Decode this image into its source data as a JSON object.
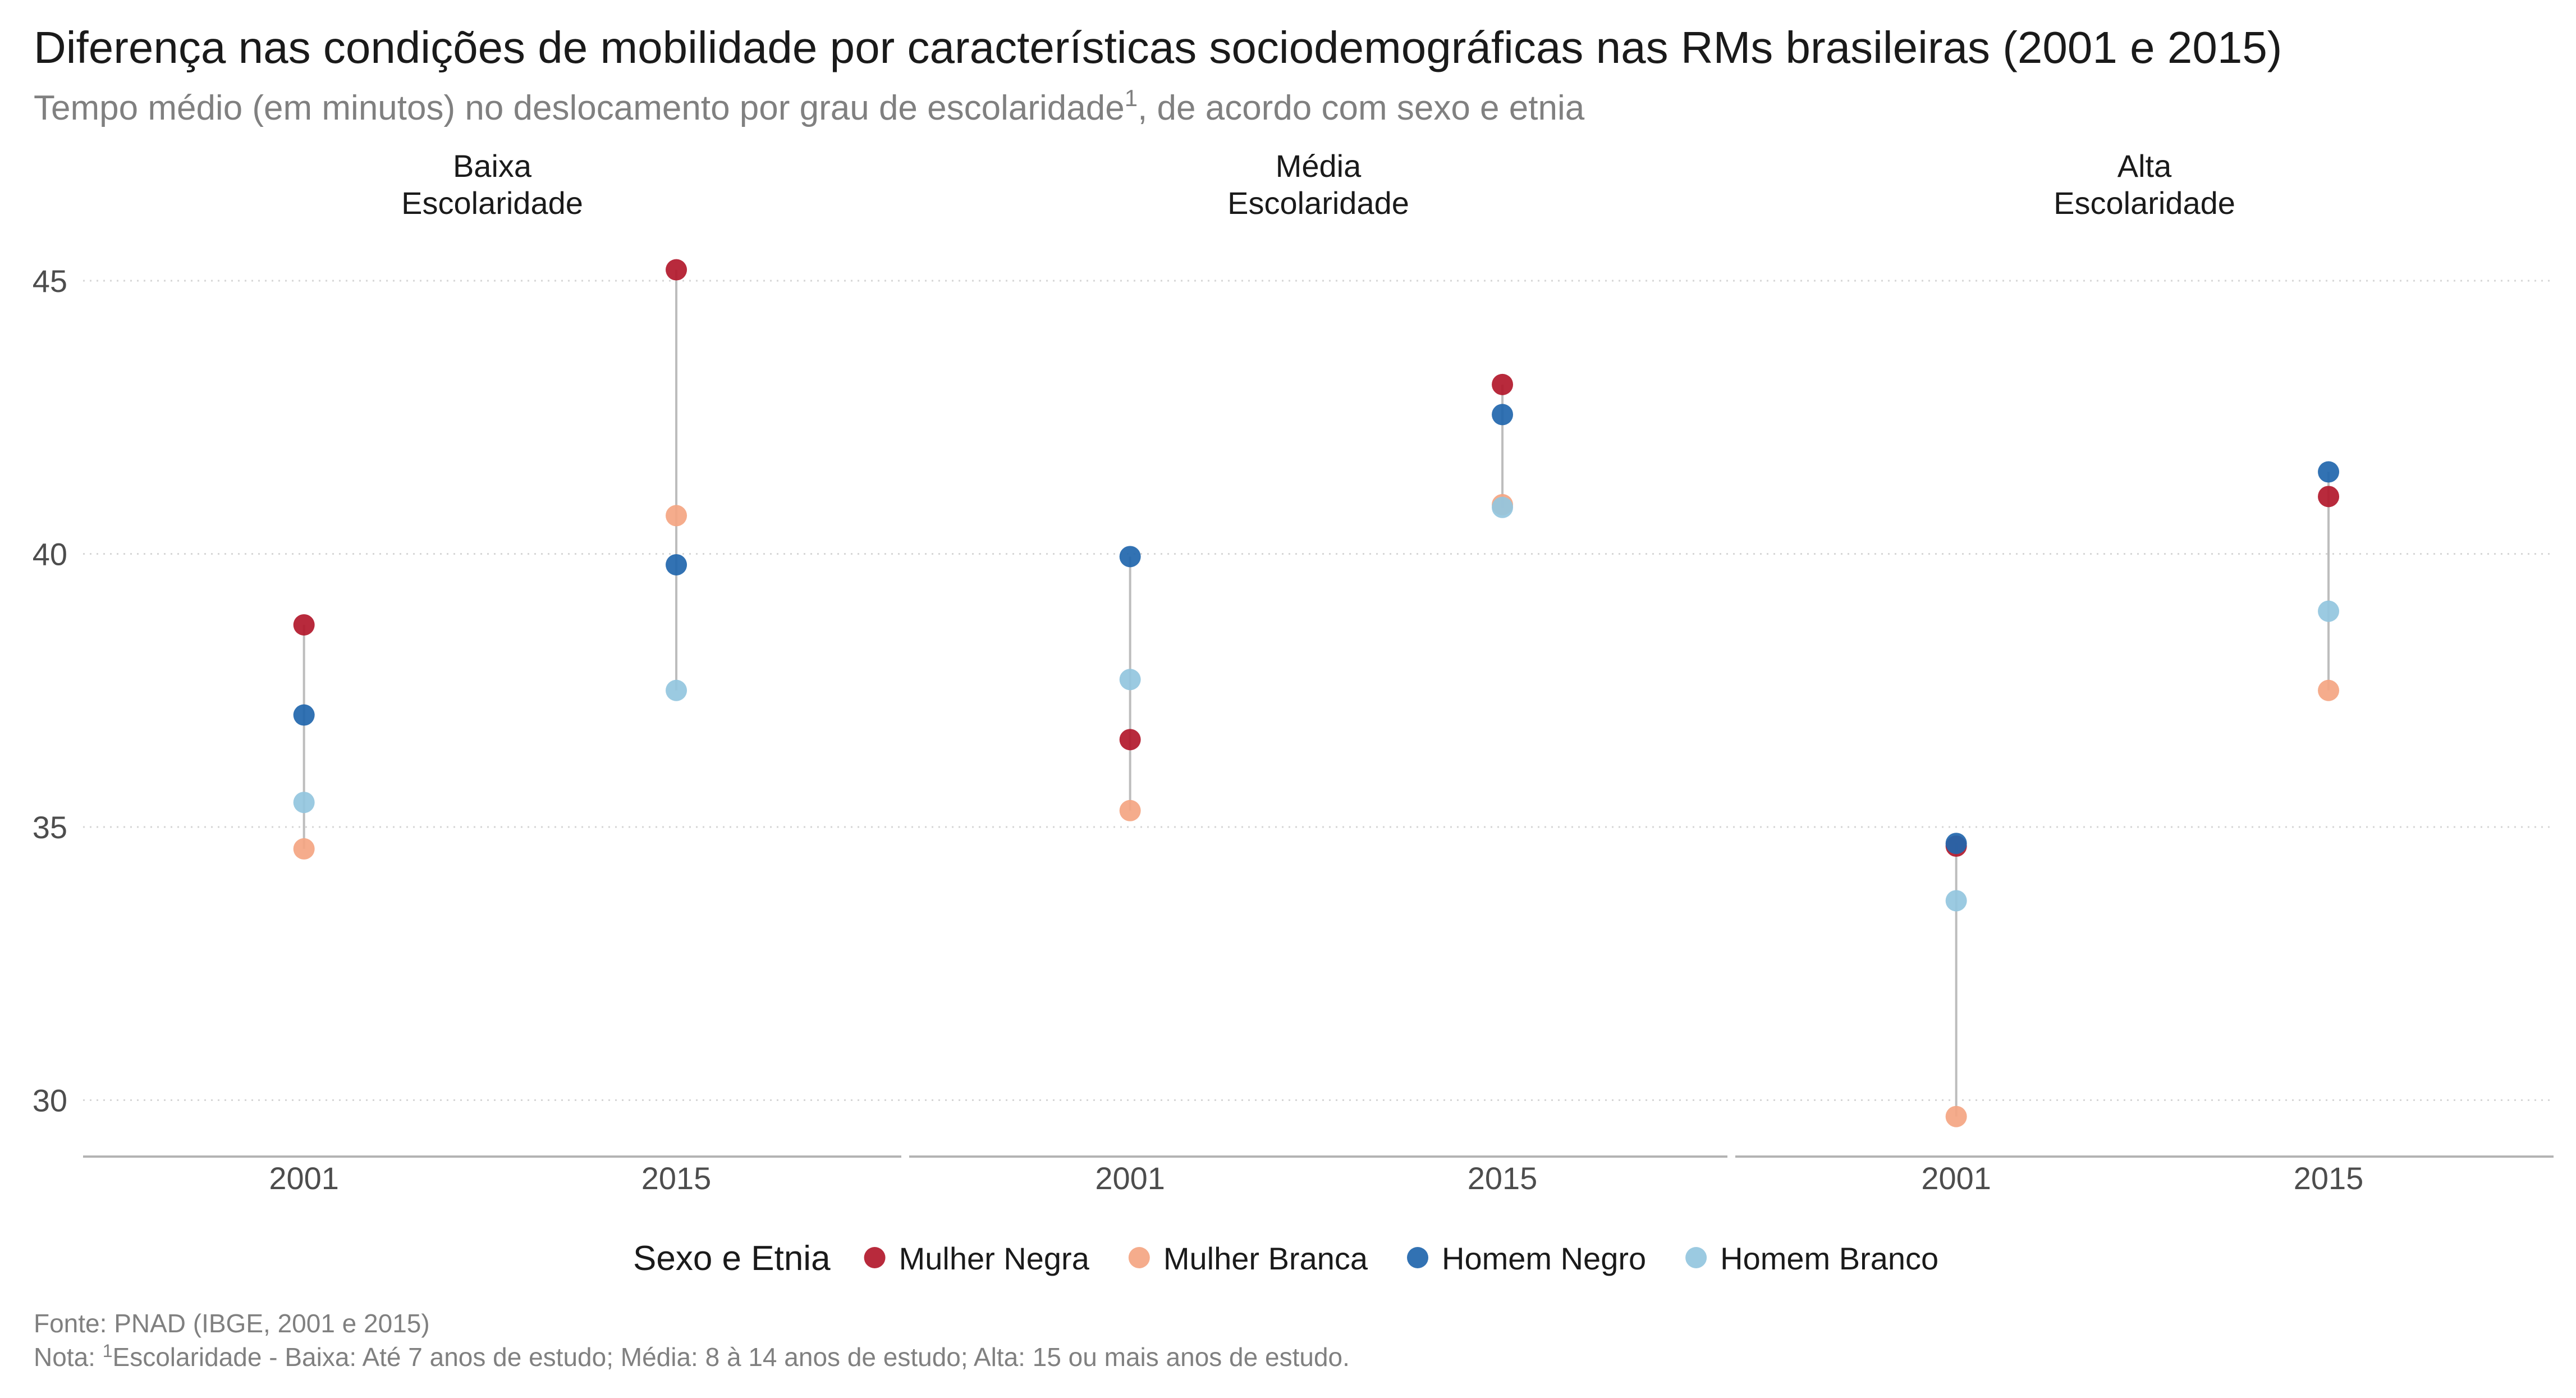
{
  "chart_data": {
    "type": "dot-range",
    "title": "Diferença nas condições de mobilidade por características sociodemográficas nas RMs brasileiras (2001 e 2015)",
    "subtitle_main": "Tempo médio (em minutos) no deslocamento por grau de escolaridade",
    "subtitle_sup": "1",
    "subtitle_end": ", de acordo com sexo e etnia",
    "x_categories": [
      "2001",
      "2015"
    ],
    "y_ticks": [
      30,
      35,
      40,
      45
    ],
    "ylim": [
      29,
      46.5
    ],
    "grid": "horizontal-dotted",
    "legend_position": "bottom",
    "legend_title": "Sexo e Etnia",
    "series": [
      {
        "name": "Mulher Negra",
        "color": "#b2182b"
      },
      {
        "name": "Mulher Branca",
        "color": "#f4a582"
      },
      {
        "name": "Homem Negro",
        "color": "#2166ac"
      },
      {
        "name": "Homem Branco",
        "color": "#92c5de"
      }
    ],
    "panels": [
      {
        "title_line1": "Baixa",
        "title_line2": "Escolaridade",
        "values": {
          "2001": {
            "Mulher Negra": 38.7,
            "Mulher Branca": 34.6,
            "Homem Negro": 37.05,
            "Homem Branco": 35.45
          },
          "2015": {
            "Mulher Negra": 45.2,
            "Mulher Branca": 40.7,
            "Homem Negro": 39.8,
            "Homem Branco": 37.5
          }
        }
      },
      {
        "title_line1": "Média",
        "title_line2": "Escolaridade",
        "values": {
          "2001": {
            "Mulher Negra": 36.6,
            "Mulher Branca": 35.3,
            "Homem Negro": 39.95,
            "Homem Branco": 37.7
          },
          "2015": {
            "Mulher Negra": 43.1,
            "Mulher Branca": 40.9,
            "Homem Negro": 42.55,
            "Homem Branco": 40.85
          }
        }
      },
      {
        "title_line1": "Alta",
        "title_line2": "Escolaridade",
        "values": {
          "2001": {
            "Mulher Negra": 34.65,
            "Mulher Branca": 29.7,
            "Homem Negro": 34.7,
            "Homem Branco": 33.65
          },
          "2015": {
            "Mulher Negra": 41.05,
            "Mulher Branca": 37.5,
            "Homem Negro": 41.5,
            "Homem Branco": 38.95
          }
        }
      }
    ],
    "source": "Fonte: PNAD (IBGE, 2001 e 2015)",
    "note_prefix": "Nota: ",
    "note_sup": "1",
    "note_text": "Escolaridade - Baixa: Até 7 anos de estudo; Média: 8 à 14 anos de estudo; Alta: 15 ou mais anos de estudo."
  }
}
